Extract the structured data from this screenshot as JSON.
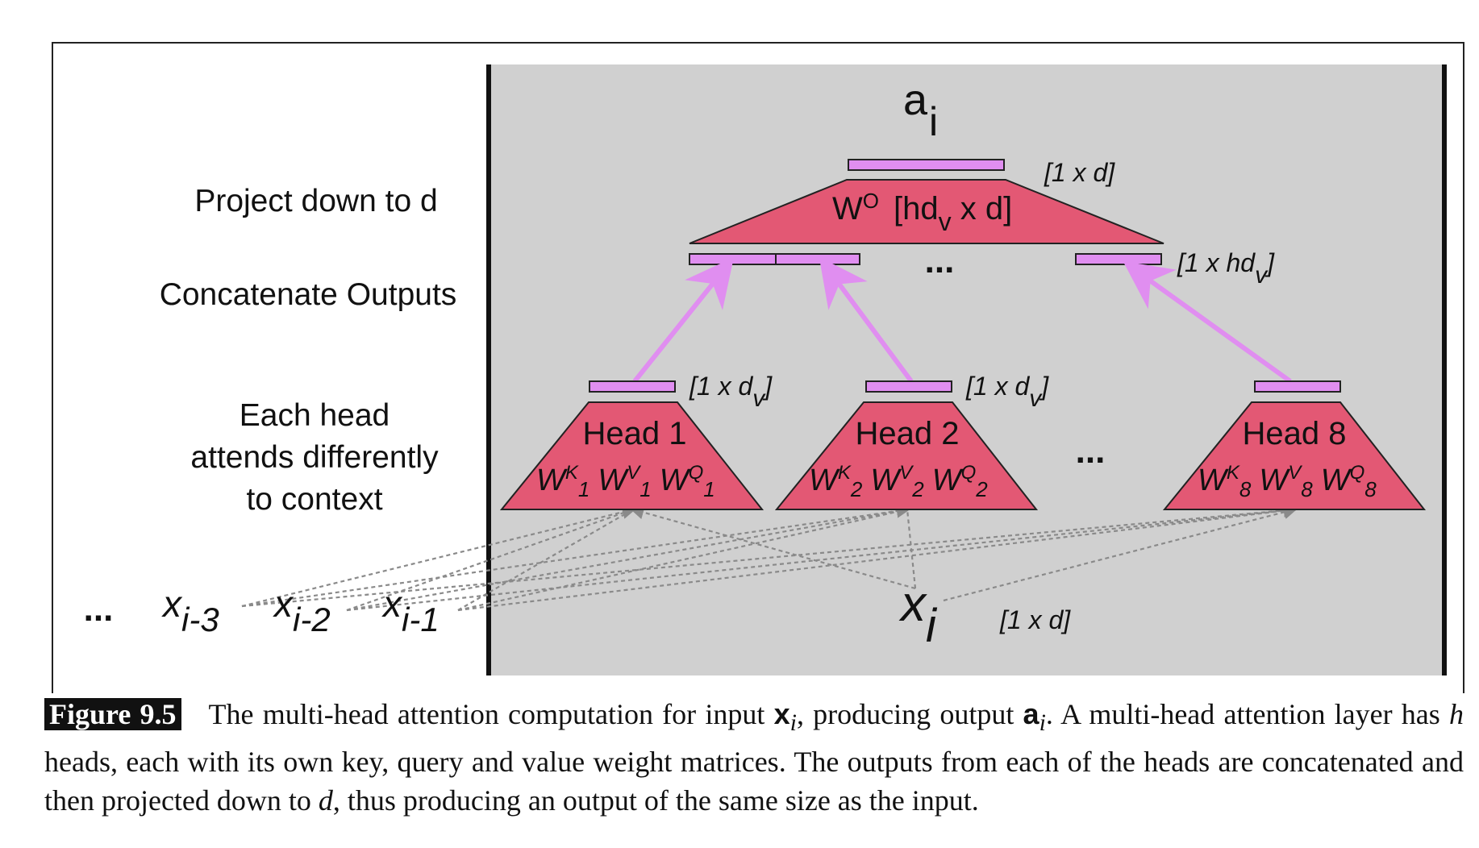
{
  "side_labels": {
    "project": "Project down to d",
    "concat": "Concatenate Outputs",
    "heads_line1": "Each head",
    "heads_line2": "attends differently",
    "heads_line3": "to context"
  },
  "output": {
    "symbol": "a",
    "subscript": "i",
    "dim": "[1 x d]"
  },
  "projection": {
    "w": "W",
    "w_sup": "O",
    "dim_open": "[hd",
    "dim_sub": "v",
    "dim_close": " x d]"
  },
  "concat": {
    "ellipsis": "...",
    "dim_open": "[1 x hd",
    "dim_sub": "v",
    "dim_close": "]"
  },
  "heads": [
    {
      "title": "Head 1",
      "idx": "1",
      "dim_open": "[1 x d",
      "dim_sub": "v",
      "dim_close": "]"
    },
    {
      "title": "Head 2",
      "idx": "2",
      "dim_open": "[1 x d",
      "dim_sub": "v",
      "dim_close": "]"
    },
    {
      "title": "Head 8",
      "idx": "8",
      "dim_open": "",
      "dim_sub": "",
      "dim_close": ""
    }
  ],
  "heads_ellipsis": "...",
  "weights": {
    "w": "W",
    "k": "K",
    "v": "V",
    "q": "Q"
  },
  "inputs": {
    "ellipsis": "...",
    "x": "x",
    "xm3_sub": "i-3",
    "xm2_sub": "i-2",
    "xm1_sub": "i-1",
    "xi_sub": "i",
    "xi_dim": "[1 x d]"
  },
  "colors": {
    "panel": "#d0d0d0",
    "trapezoid": "#e35874",
    "bar": "#e08ef0",
    "arrow": "#e08ef0",
    "dash": "#8a8a8a"
  },
  "caption": {
    "label": "Figure 9.5",
    "p1": "The multi-head attention computation for input ",
    "x_bold": "x",
    "x_sub": "i",
    "p2": ", producing output ",
    "a_bold": "a",
    "a_sub": "i",
    "p3": ". A multi-head attention layer has ",
    "h": "h",
    "p4": " heads, each with its own key, query and value weight matrices. The outputs from each of the heads are concatenated and then projected down to ",
    "d": "d",
    "p5": ", thus producing an output of the same size as the input."
  }
}
